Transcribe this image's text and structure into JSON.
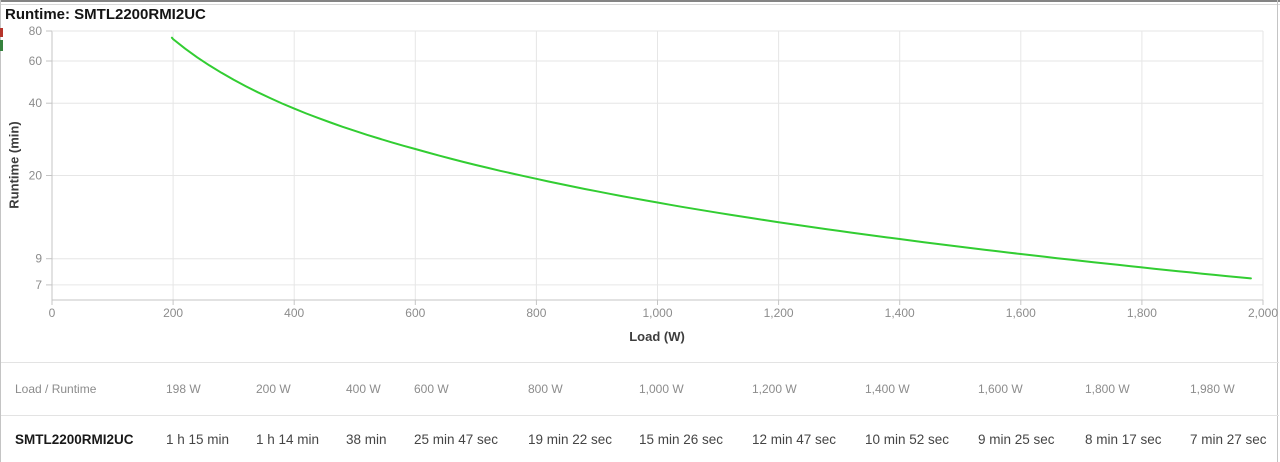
{
  "page": {
    "title": "Runtime: SMTL2200RMI2UC"
  },
  "decorations": {
    "edge_mark_red": "#b5342a",
    "edge_mark_green": "#35823d"
  },
  "chart_data": {
    "type": "line",
    "title": "Runtime: SMTL2200RMI2UC",
    "xlabel": "Load (W)",
    "ylabel": "Runtime (min)",
    "x_scale": "linear",
    "y_scale": "log",
    "xlim": [
      0,
      2000
    ],
    "ylim": [
      6,
      80
    ],
    "grid": true,
    "legend": "none",
    "x_tick_values": [
      0,
      200,
      400,
      600,
      800,
      1000,
      1200,
      1400,
      1600,
      1800,
      2000
    ],
    "x_tick_labels": [
      "0",
      "200",
      "400",
      "600",
      "800",
      "1,000",
      "1,200",
      "1,400",
      "1,600",
      "1,800",
      "2,000"
    ],
    "y_tick_values": [
      80,
      60,
      40,
      20,
      9,
      7
    ],
    "y_tick_labels": [
      "80",
      "60",
      "40",
      "20",
      "9",
      "7"
    ],
    "series": [
      {
        "name": "SMTL2200RMI2UC",
        "color": "#32cd32",
        "points": [
          [
            198,
            75
          ],
          [
            200,
            74
          ],
          [
            400,
            38
          ],
          [
            600,
            25.78
          ],
          [
            800,
            19.37
          ],
          [
            1000,
            15.43
          ],
          [
            1200,
            12.78
          ],
          [
            1400,
            10.87
          ],
          [
            1600,
            9.42
          ],
          [
            1800,
            8.28
          ],
          [
            1980,
            7.45
          ]
        ]
      }
    ]
  },
  "table": {
    "header": [
      "Load / Runtime",
      "198 W",
      "200 W",
      "400 W",
      "600 W",
      "800 W",
      "1,000 W",
      "1,200 W",
      "1,400 W",
      "1,600 W",
      "1,800 W",
      "1,980 W"
    ],
    "rows": [
      {
        "label": "SMTL2200RMI2UC",
        "values": [
          "1 h 15 min",
          "1 h 14 min",
          "38 min",
          "25 min 47 sec",
          "19 min 22 sec",
          "15 min 26 sec",
          "12 min 47 sec",
          "10 min 52 sec",
          "9 min 25 sec",
          "8 min 17 sec",
          "7 min 27 sec"
        ]
      }
    ]
  }
}
